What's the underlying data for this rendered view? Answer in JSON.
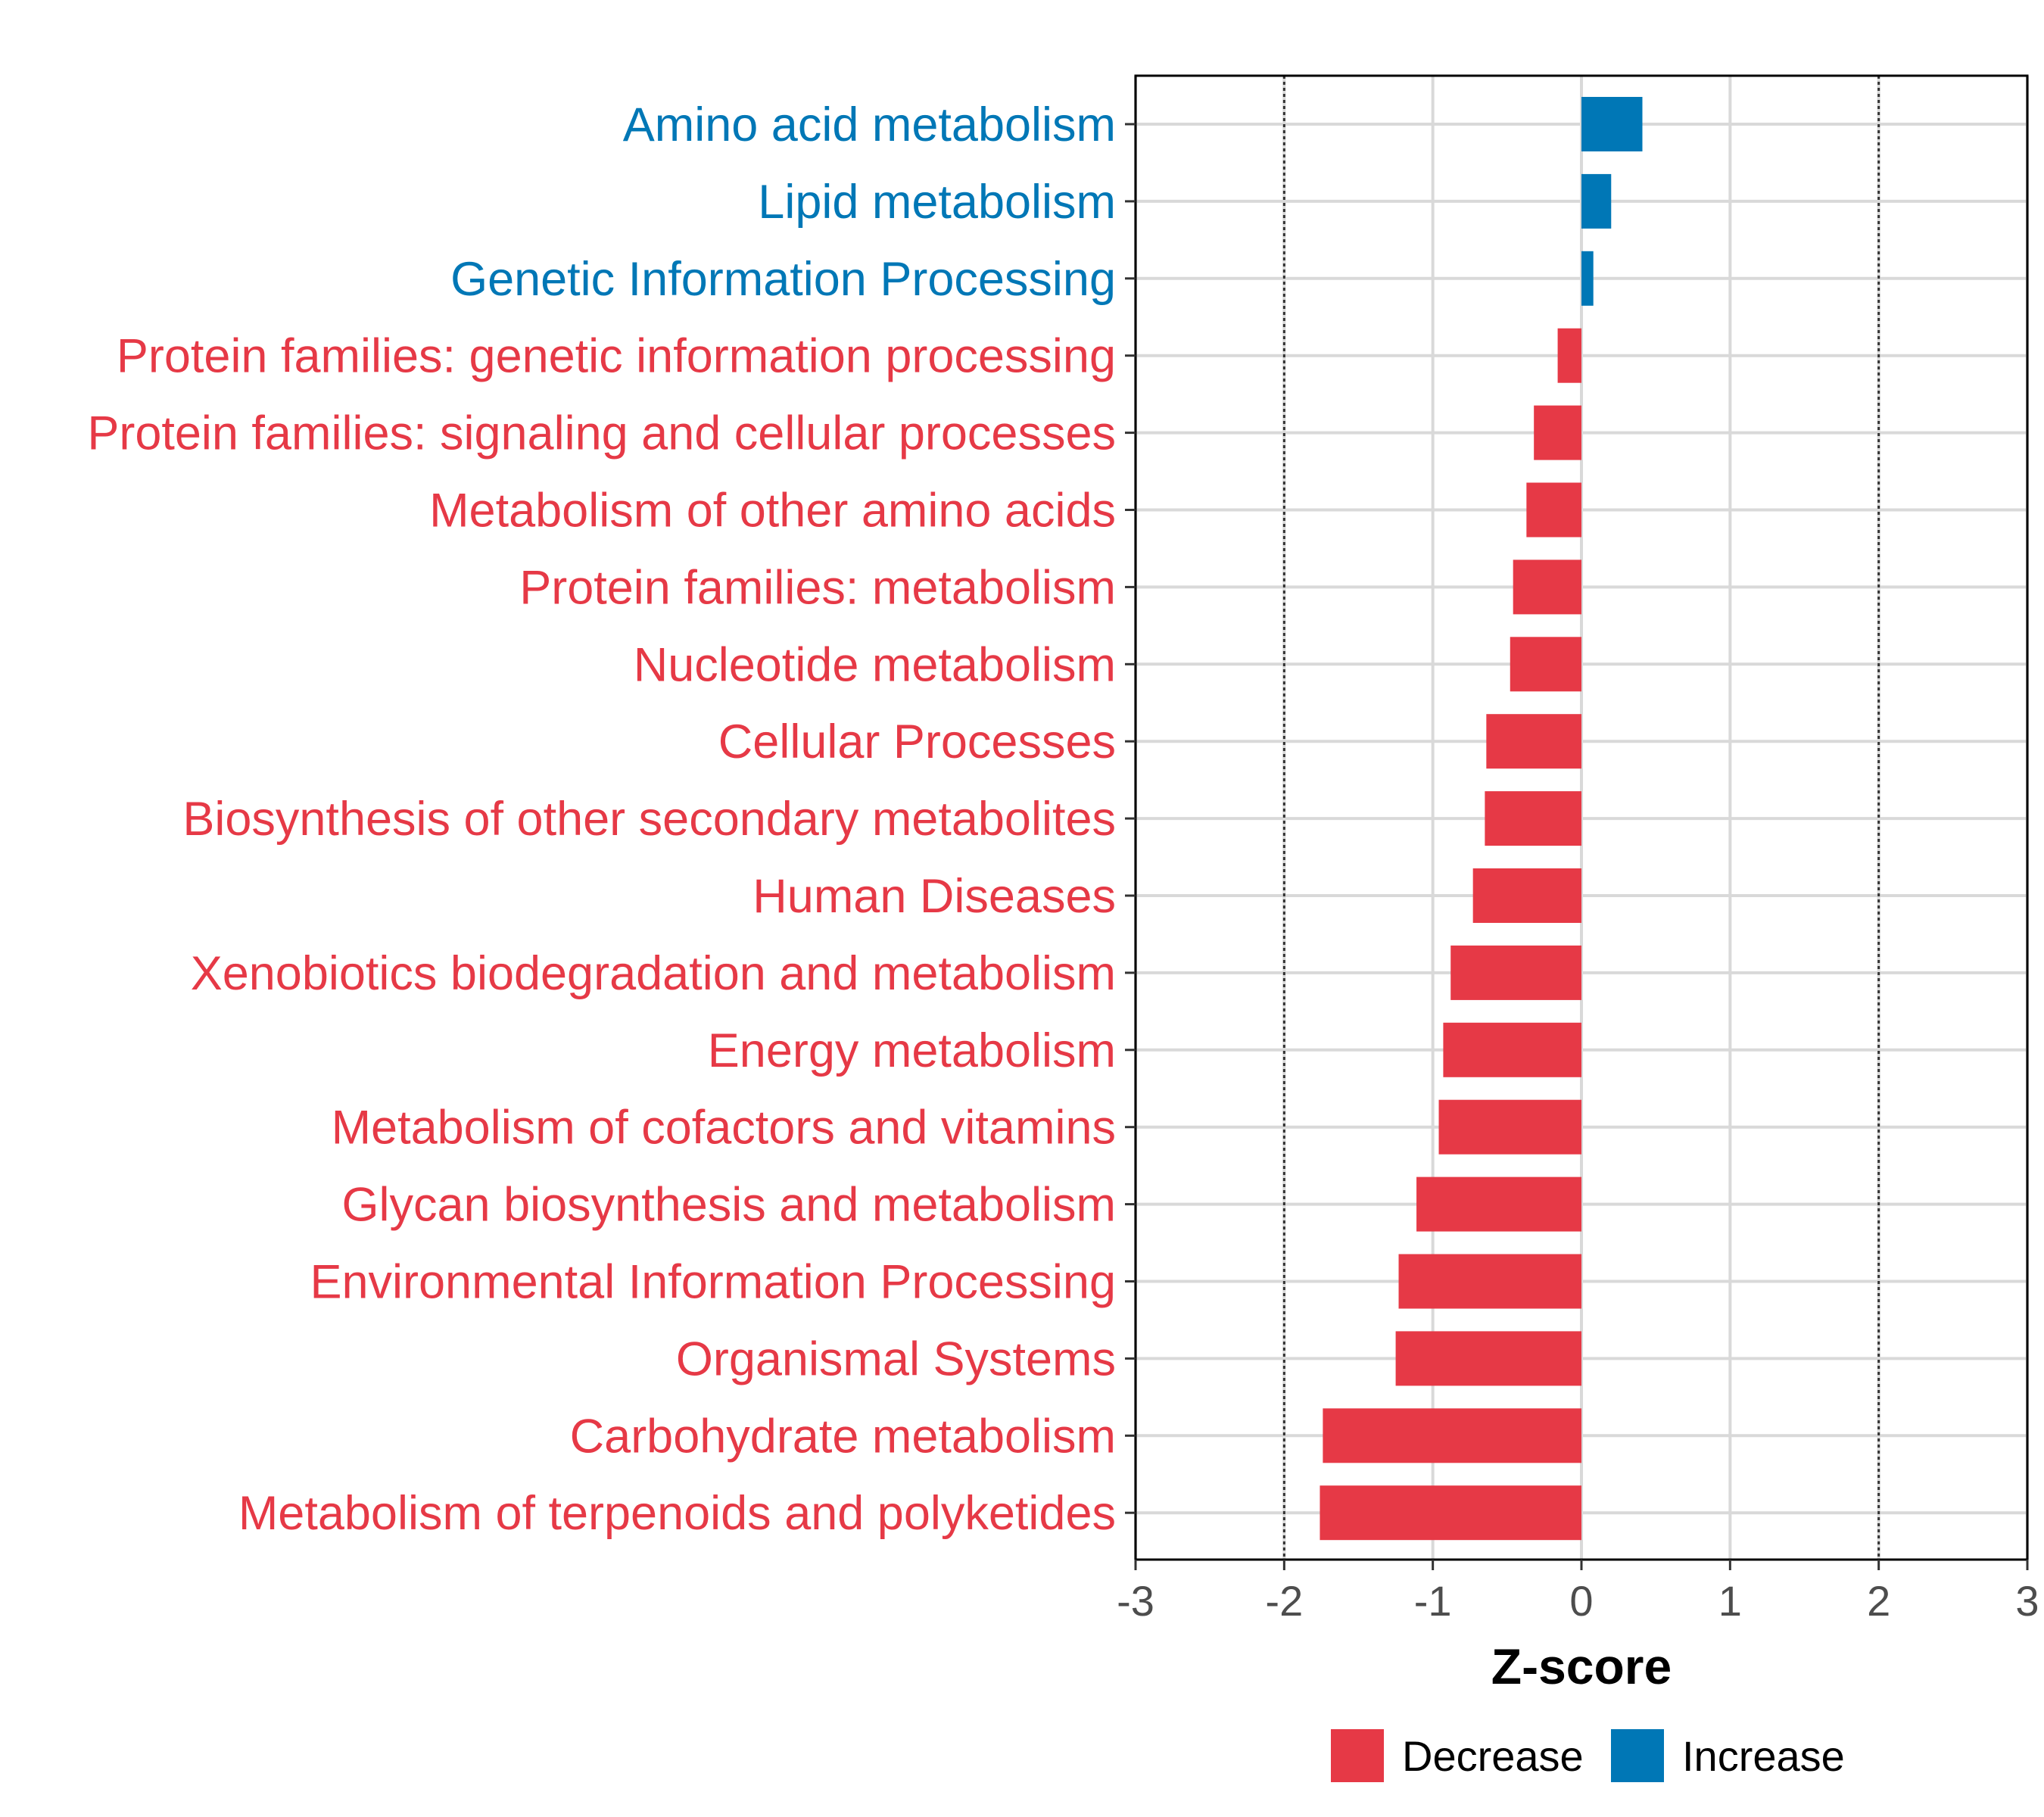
{
  "chart_data": {
    "type": "bar",
    "orientation": "horizontal",
    "xlabel": "Z-score",
    "xlim": [
      -3,
      3
    ],
    "xticks": [
      -3,
      -2,
      -1,
      0,
      1,
      2,
      3
    ],
    "xtick_labels": [
      "-3",
      "-2",
      "-1",
      "0",
      "1",
      "2",
      "3"
    ],
    "reference_lines": [
      -2,
      2
    ],
    "grid": true,
    "legend_position": "bottom",
    "legend": [
      {
        "label": "Decrease",
        "color": "#E63946"
      },
      {
        "label": "Increase",
        "color": "#0077B6"
      }
    ],
    "categories": [
      "Amino acid metabolism",
      "Lipid metabolism",
      "Genetic Information Processing",
      "Protein families: genetic information processing",
      "Protein families: signaling and cellular processes",
      "Metabolism of other amino acids",
      "Protein families: metabolism",
      "Nucleotide metabolism",
      "Cellular Processes",
      "Biosynthesis of other secondary metabolites",
      "Human Diseases",
      "Xenobiotics biodegradation and metabolism",
      "Energy metabolism",
      "Metabolism of cofactors and vitamins",
      "Glycan biosynthesis and metabolism",
      "Environmental Information Processing",
      "Organismal Systems",
      "Carbohydrate metabolism",
      "Metabolism of terpenoids and polyketides"
    ],
    "values": [
      0.41,
      0.2,
      0.08,
      -0.16,
      -0.32,
      -0.37,
      -0.46,
      -0.48,
      -0.64,
      -0.65,
      -0.73,
      -0.88,
      -0.93,
      -0.96,
      -1.11,
      -1.23,
      -1.25,
      -1.74,
      -1.76
    ],
    "groups": [
      "Increase",
      "Increase",
      "Increase",
      "Decrease",
      "Decrease",
      "Decrease",
      "Decrease",
      "Decrease",
      "Decrease",
      "Decrease",
      "Decrease",
      "Decrease",
      "Decrease",
      "Decrease",
      "Decrease",
      "Decrease",
      "Decrease",
      "Decrease",
      "Decrease"
    ]
  }
}
